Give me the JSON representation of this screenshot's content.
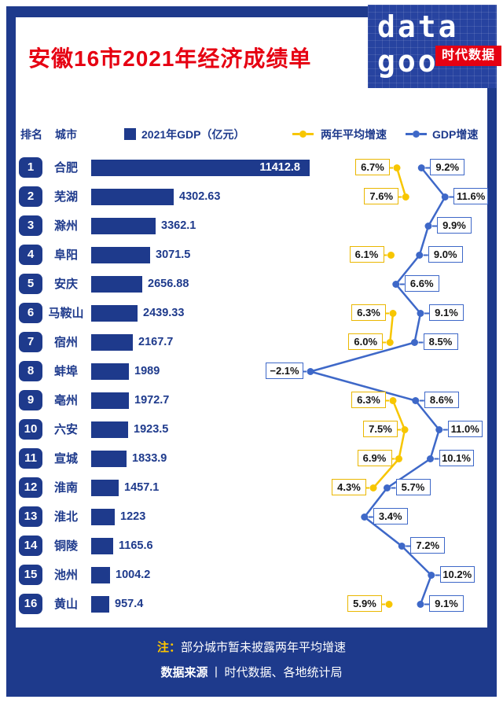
{
  "header": {
    "title": "安徽16市2021年经济成绩单"
  },
  "logo": {
    "word_top": "data",
    "word_bottom": "goo",
    "badge": "时代数据"
  },
  "legend": {
    "rank": "排名",
    "city": "城市",
    "gdp": "2021年GDP（亿元）",
    "avg_growth": "两年平均增速",
    "gdp_growth": "GDP增速"
  },
  "footer": {
    "note_prefix": "注：",
    "note": "部分城市暂未披露两年平均增速",
    "source_label": "数据来源",
    "separator": "丨",
    "source": "时代数据、各地统计局"
  },
  "colors": {
    "navy": "#1e3a8c",
    "red": "#e60012",
    "yellow": "#f7c600",
    "yellow_border": "#eab700",
    "blue": "#3e68c8",
    "white": "#ffffff"
  },
  "rows": [
    {
      "rank": "1",
      "city": "合肥",
      "gdp": 11412.8,
      "gdp_label": "11412.8",
      "avg_growth": 6.7,
      "gdp_growth": 9.2
    },
    {
      "rank": "2",
      "city": "芜湖",
      "gdp": 4302.63,
      "gdp_label": "4302.63",
      "avg_growth": 7.6,
      "gdp_growth": 11.6
    },
    {
      "rank": "3",
      "city": "滁州",
      "gdp": 3362.1,
      "gdp_label": "3362.1",
      "avg_growth": null,
      "gdp_growth": 9.9
    },
    {
      "rank": "4",
      "city": "阜阳",
      "gdp": 3071.5,
      "gdp_label": "3071.5",
      "avg_growth": 6.1,
      "gdp_growth": 9.0
    },
    {
      "rank": "5",
      "city": "安庆",
      "gdp": 2656.88,
      "gdp_label": "2656.88",
      "avg_growth": null,
      "gdp_growth": 6.6
    },
    {
      "rank": "6",
      "city": "马鞍山",
      "gdp": 2439.33,
      "gdp_label": "2439.33",
      "avg_growth": 6.3,
      "gdp_growth": 9.1
    },
    {
      "rank": "7",
      "city": "宿州",
      "gdp": 2167.7,
      "gdp_label": "2167.7",
      "avg_growth": 6.0,
      "gdp_growth": 8.5
    },
    {
      "rank": "8",
      "city": "蚌埠",
      "gdp": 1989,
      "gdp_label": "1989",
      "avg_growth": null,
      "gdp_growth": -2.1
    },
    {
      "rank": "9",
      "city": "亳州",
      "gdp": 1972.7,
      "gdp_label": "1972.7",
      "avg_growth": 6.3,
      "gdp_growth": 8.6
    },
    {
      "rank": "10",
      "city": "六安",
      "gdp": 1923.5,
      "gdp_label": "1923.5",
      "avg_growth": 7.5,
      "gdp_growth": 11.0
    },
    {
      "rank": "11",
      "city": "宣城",
      "gdp": 1833.9,
      "gdp_label": "1833.9",
      "avg_growth": 6.9,
      "gdp_growth": 10.1
    },
    {
      "rank": "12",
      "city": "淮南",
      "gdp": 1457.1,
      "gdp_label": "1457.1",
      "avg_growth": 4.3,
      "gdp_growth": 5.7
    },
    {
      "rank": "13",
      "city": "淮北",
      "gdp": 1223,
      "gdp_label": "1223",
      "avg_growth": null,
      "gdp_growth": 3.4
    },
    {
      "rank": "14",
      "city": "铜陵",
      "gdp": 1165.6,
      "gdp_label": "1165.6",
      "avg_growth": null,
      "gdp_growth": 7.2
    },
    {
      "rank": "15",
      "city": "池州",
      "gdp": 1004.2,
      "gdp_label": "1004.2",
      "avg_growth": null,
      "gdp_growth": 10.2
    },
    {
      "rank": "16",
      "city": "黄山",
      "gdp": 957.4,
      "gdp_label": "957.4",
      "avg_growth": 5.9,
      "gdp_growth": 9.1
    }
  ],
  "chart_data": {
    "type": "bar",
    "title": "安徽16市2021年经济成绩单",
    "categories": [
      "合肥",
      "芜湖",
      "滁州",
      "阜阳",
      "安庆",
      "马鞍山",
      "宿州",
      "蚌埠",
      "亳州",
      "六安",
      "宣城",
      "淮南",
      "淮北",
      "铜陵",
      "池州",
      "黄山"
    ],
    "ranks": [
      1,
      2,
      3,
      4,
      5,
      6,
      7,
      8,
      9,
      10,
      11,
      12,
      13,
      14,
      15,
      16
    ],
    "series": [
      {
        "name": "2021年GDP（亿元）",
        "type": "bar",
        "values": [
          11412.8,
          4302.63,
          3362.1,
          3071.5,
          2656.88,
          2439.33,
          2167.7,
          1989,
          1972.7,
          1923.5,
          1833.9,
          1457.1,
          1223,
          1165.6,
          1004.2,
          957.4
        ]
      },
      {
        "name": "两年平均增速",
        "type": "line",
        "unit": "%",
        "values": [
          6.7,
          7.6,
          null,
          6.1,
          null,
          6.3,
          6.0,
          null,
          6.3,
          7.5,
          6.9,
          4.3,
          null,
          null,
          null,
          5.9
        ]
      },
      {
        "name": "GDP增速",
        "type": "line",
        "unit": "%",
        "values": [
          9.2,
          11.6,
          9.9,
          9.0,
          6.6,
          9.1,
          8.5,
          -2.1,
          8.6,
          11.0,
          10.1,
          5.7,
          3.4,
          7.2,
          10.2,
          9.1
        ]
      }
    ],
    "layout": {
      "orientation": "horizontal-bars",
      "growth_axis_range_pct": [
        -3,
        12
      ],
      "legend_position": "top",
      "grid": false
    },
    "note": "注：部分城市暂未披露两年平均增速",
    "source": "数据来源丨时代数据、各地统计局"
  }
}
